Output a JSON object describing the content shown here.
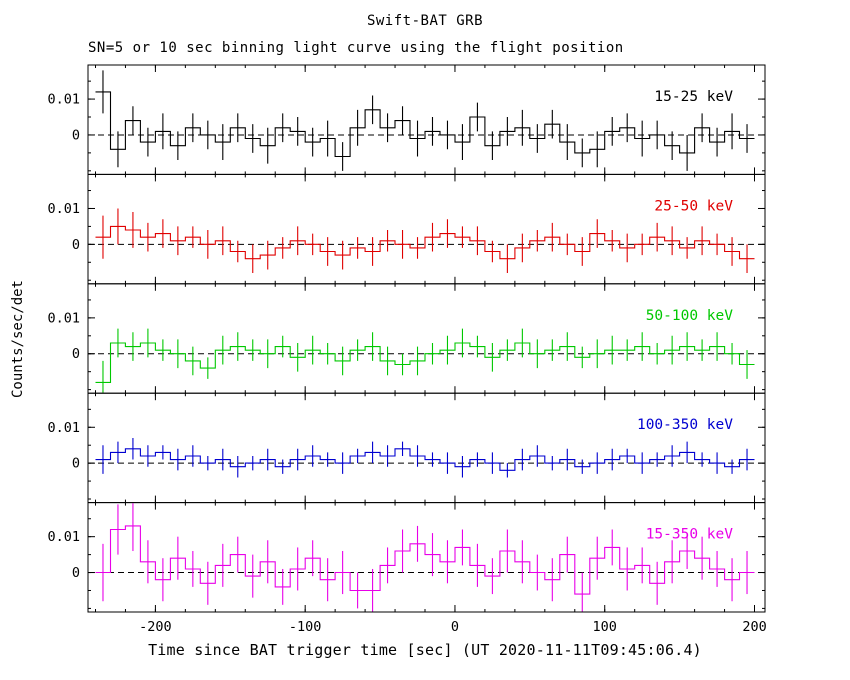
{
  "figure": {
    "title": "Swift-BAT GRB",
    "subtitle": "SN=5 or 10 sec binning light curve using the flight position",
    "xlabel": "Time since BAT trigger time [sec] (UT 2020-11-11T09:45:06.4)",
    "ylabel": "Counts/sec/det"
  },
  "chart_data": {
    "type": "line",
    "subtype": "step-histogram-with-error-bars",
    "title": "Swift-BAT GRB",
    "xlabel": "Time since BAT trigger time [sec] (UT 2020-11-11T09:45:06.4)",
    "ylabel": "Counts/sec/det",
    "xlim": [
      -245,
      207
    ],
    "ylim": [
      -0.011,
      0.0195
    ],
    "x_bin_start": -240,
    "x_bin_width": 10,
    "xticks": {
      "major": [
        -200,
        -100,
        0,
        100,
        200
      ],
      "labels": [
        "-200",
        "-100",
        "0",
        "100",
        "200"
      ],
      "minor_step": 20
    },
    "yticks": {
      "major": [
        0,
        0.01
      ],
      "labels": [
        "0",
        "0.01"
      ],
      "minor_step": 0.005
    },
    "zero_line": {
      "y": 0,
      "style": "dashed",
      "color": "#000000"
    },
    "frame_color": "#000000",
    "panels": [
      {
        "label": "15-25 keV",
        "color": "#000000",
        "values": [
          0.012,
          -0.004,
          0.004,
          -0.002,
          0.001,
          -0.003,
          0.002,
          0.0,
          -0.002,
          0.002,
          -0.001,
          -0.003,
          0.002,
          0.001,
          -0.002,
          -0.001,
          -0.006,
          0.002,
          0.007,
          0.002,
          0.004,
          -0.001,
          0.001,
          0.0,
          -0.002,
          0.005,
          -0.003,
          0.001,
          0.002,
          -0.001,
          0.003,
          -0.002,
          -0.005,
          -0.004,
          0.001,
          0.002,
          -0.001,
          0.0,
          -0.003,
          -0.005,
          0.002,
          -0.002,
          0.001,
          -0.001
        ],
        "errors": [
          0.006,
          0.005,
          0.004,
          0.004,
          0.005,
          0.004,
          0.004,
          0.004,
          0.005,
          0.004,
          0.004,
          0.005,
          0.004,
          0.004,
          0.004,
          0.005,
          0.004,
          0.005,
          0.004,
          0.004,
          0.004,
          0.005,
          0.004,
          0.004,
          0.005,
          0.004,
          0.004,
          0.004,
          0.005,
          0.004,
          0.004,
          0.005,
          0.004,
          0.005,
          0.004,
          0.004,
          0.005,
          0.004,
          0.004,
          0.005,
          0.004,
          0.004,
          0.005,
          0.004
        ]
      },
      {
        "label": "25-50 keV",
        "color": "#e00000",
        "values": [
          0.002,
          0.005,
          0.004,
          0.002,
          0.003,
          0.001,
          0.002,
          0.0,
          0.001,
          -0.002,
          -0.004,
          -0.003,
          -0.001,
          0.001,
          0.0,
          -0.002,
          -0.003,
          -0.001,
          -0.002,
          0.001,
          0.0,
          -0.001,
          0.002,
          0.003,
          0.002,
          0.001,
          -0.002,
          -0.004,
          -0.001,
          0.001,
          0.002,
          0.0,
          -0.002,
          0.003,
          0.001,
          -0.001,
          0.0,
          0.002,
          0.001,
          -0.001,
          0.001,
          0.0,
          -0.002,
          -0.004
        ],
        "errors": [
          0.006,
          0.005,
          0.005,
          0.004,
          0.004,
          0.004,
          0.003,
          0.004,
          0.004,
          0.003,
          0.004,
          0.004,
          0.003,
          0.004,
          0.003,
          0.004,
          0.004,
          0.003,
          0.004,
          0.003,
          0.004,
          0.003,
          0.004,
          0.004,
          0.003,
          0.004,
          0.003,
          0.004,
          0.004,
          0.003,
          0.004,
          0.003,
          0.004,
          0.004,
          0.003,
          0.004,
          0.003,
          0.004,
          0.004,
          0.003,
          0.004,
          0.003,
          0.004,
          0.004
        ]
      },
      {
        "label": "50-100 keV",
        "color": "#00c800",
        "values": [
          -0.008,
          0.003,
          0.002,
          0.003,
          0.001,
          0.0,
          -0.002,
          -0.004,
          0.001,
          0.002,
          0.001,
          0.0,
          0.002,
          -0.001,
          0.001,
          0.0,
          -0.002,
          0.001,
          0.002,
          -0.002,
          -0.003,
          -0.002,
          0.0,
          0.001,
          0.003,
          0.002,
          -0.001,
          0.001,
          0.003,
          0.0,
          0.001,
          0.002,
          -0.001,
          0.0,
          0.001,
          0.001,
          0.002,
          0.0,
          0.001,
          0.002,
          0.001,
          0.002,
          0.0,
          -0.003
        ],
        "errors": [
          0.006,
          0.004,
          0.004,
          0.004,
          0.003,
          0.004,
          0.004,
          0.003,
          0.004,
          0.004,
          0.003,
          0.004,
          0.003,
          0.004,
          0.004,
          0.003,
          0.004,
          0.003,
          0.004,
          0.004,
          0.003,
          0.004,
          0.003,
          0.004,
          0.004,
          0.003,
          0.004,
          0.003,
          0.004,
          0.004,
          0.003,
          0.004,
          0.003,
          0.004,
          0.004,
          0.003,
          0.004,
          0.003,
          0.004,
          0.004,
          0.003,
          0.004,
          0.003,
          0.004
        ]
      },
      {
        "label": "100-350 keV",
        "color": "#0000d0",
        "values": [
          0.001,
          0.003,
          0.004,
          0.002,
          0.003,
          0.001,
          0.002,
          0.0,
          0.001,
          -0.001,
          0.0,
          0.001,
          -0.001,
          0.001,
          0.002,
          0.001,
          0.0,
          0.002,
          0.003,
          0.002,
          0.004,
          0.002,
          0.001,
          0.0,
          -0.001,
          0.001,
          0.0,
          -0.002,
          0.001,
          0.002,
          0.0,
          0.001,
          -0.001,
          0.0,
          0.001,
          0.002,
          0.0,
          0.001,
          0.002,
          0.003,
          0.001,
          0.0,
          -0.001,
          0.001
        ],
        "errors": [
          0.004,
          0.003,
          0.003,
          0.003,
          0.002,
          0.003,
          0.003,
          0.002,
          0.003,
          0.003,
          0.002,
          0.003,
          0.002,
          0.003,
          0.003,
          0.002,
          0.003,
          0.002,
          0.003,
          0.003,
          0.002,
          0.003,
          0.002,
          0.003,
          0.003,
          0.002,
          0.003,
          0.002,
          0.003,
          0.003,
          0.002,
          0.003,
          0.002,
          0.003,
          0.003,
          0.002,
          0.003,
          0.002,
          0.003,
          0.003,
          0.002,
          0.003,
          0.002,
          0.003
        ]
      },
      {
        "label": "15-350 keV",
        "color": "#e800e8",
        "values": [
          0.0,
          0.012,
          0.013,
          0.003,
          -0.002,
          0.004,
          0.001,
          -0.003,
          0.002,
          0.005,
          -0.001,
          0.003,
          -0.004,
          0.001,
          0.004,
          -0.002,
          0.0,
          -0.005,
          -0.005,
          0.002,
          0.006,
          0.008,
          0.005,
          0.003,
          0.007,
          0.002,
          -0.001,
          0.006,
          0.003,
          0.0,
          -0.002,
          0.005,
          -0.006,
          0.004,
          0.007,
          0.001,
          0.002,
          -0.003,
          0.003,
          0.006,
          0.004,
          0.001,
          -0.002,
          0.0
        ],
        "errors": [
          0.008,
          0.007,
          0.007,
          0.006,
          0.006,
          0.006,
          0.005,
          0.006,
          0.006,
          0.005,
          0.006,
          0.006,
          0.005,
          0.006,
          0.005,
          0.006,
          0.006,
          0.005,
          0.006,
          0.005,
          0.006,
          0.005,
          0.006,
          0.006,
          0.005,
          0.006,
          0.005,
          0.006,
          0.006,
          0.005,
          0.006,
          0.005,
          0.006,
          0.006,
          0.005,
          0.006,
          0.005,
          0.006,
          0.006,
          0.005,
          0.006,
          0.005,
          0.006,
          0.006
        ]
      }
    ]
  }
}
